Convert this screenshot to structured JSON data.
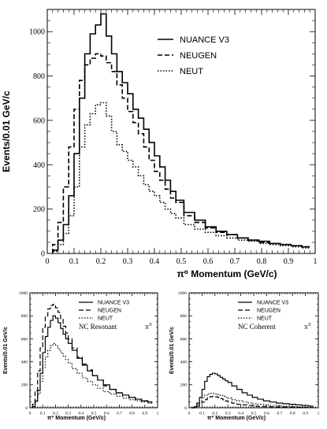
{
  "chart_data": [
    {
      "type": "line",
      "x": [
        0.03,
        0.05,
        0.07,
        0.09,
        0.11,
        0.13,
        0.15,
        0.17,
        0.19,
        0.21,
        0.23,
        0.25,
        0.27,
        0.29,
        0.31,
        0.33,
        0.35,
        0.37,
        0.39,
        0.41,
        0.43,
        0.45,
        0.47,
        0.49,
        0.53,
        0.57,
        0.61,
        0.65,
        0.69,
        0.73,
        0.77,
        0.81,
        0.85,
        0.89,
        0.93,
        0.97
      ],
      "series": [
        {
          "name": "NUANCE V3",
          "style": "solid",
          "values": [
            15,
            60,
            130,
            260,
            450,
            700,
            900,
            990,
            1030,
            1080,
            980,
            900,
            820,
            770,
            720,
            650,
            610,
            560,
            500,
            440,
            390,
            330,
            280,
            240,
            185,
            150,
            120,
            100,
            85,
            70,
            60,
            55,
            45,
            40,
            35,
            30
          ]
        },
        {
          "name": "NEUGEN",
          "style": "dashed",
          "values": [
            40,
            140,
            300,
            480,
            650,
            780,
            850,
            880,
            900,
            890,
            860,
            820,
            760,
            700,
            640,
            590,
            540,
            480,
            420,
            370,
            330,
            290,
            250,
            230,
            170,
            140,
            115,
            95,
            85,
            70,
            60,
            50,
            45,
            40,
            35,
            30
          ]
        },
        {
          "name": "NEUT",
          "style": "dotted",
          "values": [
            10,
            40,
            90,
            170,
            300,
            480,
            580,
            630,
            670,
            680,
            620,
            550,
            490,
            460,
            420,
            390,
            350,
            310,
            280,
            260,
            230,
            200,
            180,
            160,
            130,
            110,
            95,
            80,
            70,
            60,
            55,
            45,
            40,
            35,
            30,
            25
          ]
        }
      ],
      "title": "",
      "xlabel": "π⁰ Momentum (GeV/c)",
      "ylabel": "Events/0.01 GeV/c",
      "xlim": [
        0,
        1
      ],
      "ylim": [
        0,
        1100
      ],
      "xticks": [
        "0",
        "0.1",
        "0.2",
        "0.3",
        "0.4",
        "0.5",
        "0.6",
        "0.7",
        "0.8",
        "0.9",
        "1"
      ],
      "yticks": [
        "0",
        "200",
        "400",
        "600",
        "800",
        "1000"
      ],
      "grid": false,
      "legend_position": "top-right"
    },
    {
      "type": "line",
      "x": [
        0.03,
        0.05,
        0.07,
        0.09,
        0.11,
        0.13,
        0.15,
        0.17,
        0.19,
        0.21,
        0.23,
        0.25,
        0.27,
        0.29,
        0.31,
        0.35,
        0.39,
        0.43,
        0.47,
        0.51,
        0.55,
        0.6,
        0.65,
        0.7,
        0.75,
        0.8,
        0.85,
        0.9,
        0.95
      ],
      "series": [
        {
          "name": "NUANCE V3",
          "style": "solid",
          "values": [
            10,
            60,
            150,
            300,
            480,
            620,
            700,
            760,
            800,
            780,
            740,
            690,
            640,
            600,
            560,
            500,
            430,
            370,
            320,
            280,
            240,
            200,
            160,
            130,
            110,
            90,
            75,
            60,
            50
          ]
        },
        {
          "name": "NEUGEN",
          "style": "dashed",
          "values": [
            30,
            150,
            320,
            520,
            700,
            800,
            860,
            890,
            900,
            870,
            830,
            770,
            710,
            650,
            600,
            520,
            440,
            380,
            330,
            280,
            240,
            190,
            160,
            130,
            110,
            90,
            75,
            60,
            50
          ]
        },
        {
          "name": "NEUT",
          "style": "dotted",
          "values": [
            10,
            50,
            120,
            230,
            350,
            440,
            500,
            540,
            560,
            540,
            510,
            480,
            450,
            420,
            390,
            340,
            300,
            260,
            230,
            200,
            170,
            140,
            120,
            100,
            85,
            70,
            60,
            50,
            40
          ]
        }
      ],
      "annotation": "NC Resonant",
      "annotation_symbol": "π",
      "annotation_symbol_sup": "0",
      "xlabel": "π⁰ Momentum (GeV/c)",
      "ylabel": "Events/0.01 GeV/c",
      "xlim": [
        0,
        1
      ],
      "ylim": [
        0,
        1000
      ],
      "xticks": [
        "0",
        "0.1",
        "0.2",
        "0.3",
        "0.4",
        "0.5",
        "0.6",
        "0.7",
        "0.8",
        "0.9",
        "1"
      ],
      "yticks": [
        "0",
        "200",
        "400",
        "600",
        "800",
        "1000"
      ],
      "grid": false,
      "legend_position": "top-right"
    },
    {
      "type": "line",
      "x": [
        0.03,
        0.05,
        0.07,
        0.09,
        0.11,
        0.13,
        0.15,
        0.17,
        0.19,
        0.21,
        0.23,
        0.25,
        0.27,
        0.29,
        0.31,
        0.35,
        0.39,
        0.43,
        0.47,
        0.51,
        0.55,
        0.6,
        0.65,
        0.7,
        0.75,
        0.8,
        0.85,
        0.9,
        0.95
      ],
      "series": [
        {
          "name": "NUANCE V3",
          "style": "solid",
          "values": [
            0,
            10,
            40,
            90,
            160,
            230,
            270,
            290,
            300,
            295,
            280,
            265,
            250,
            235,
            220,
            190,
            160,
            130,
            110,
            90,
            75,
            60,
            50,
            40,
            35,
            30,
            25,
            20,
            15
          ]
        },
        {
          "name": "NEUGEN",
          "style": "dashed",
          "values": [
            0,
            5,
            15,
            30,
            50,
            70,
            85,
            95,
            100,
            95,
            90,
            80,
            70,
            60,
            50,
            40,
            30,
            25,
            20,
            15,
            12,
            10,
            8,
            6,
            5,
            4,
            3,
            2,
            2
          ]
        },
        {
          "name": "NEUT",
          "style": "dotted",
          "values": [
            0,
            10,
            30,
            60,
            90,
            110,
            120,
            125,
            125,
            120,
            115,
            108,
            100,
            92,
            85,
            70,
            60,
            50,
            42,
            35,
            30,
            24,
            20,
            16,
            13,
            10,
            8,
            6,
            5
          ]
        }
      ],
      "annotation": "NC Coherent",
      "annotation_symbol": "π",
      "annotation_symbol_sup": "0",
      "xlabel": "π⁰ Momentum (GeV/c)",
      "ylabel": "Events/0.01 GeV/c",
      "xlim": [
        0,
        1
      ],
      "ylim": [
        0,
        1000
      ],
      "xticks": [
        "0",
        "0.1",
        "0.2",
        "0.3",
        "0.4",
        "0.5",
        "0.6",
        "0.7",
        "0.8",
        "0.9",
        "1"
      ],
      "yticks": [
        "0",
        "200",
        "400",
        "600",
        "800",
        "1000"
      ],
      "grid": false,
      "legend_position": "top-right"
    }
  ]
}
